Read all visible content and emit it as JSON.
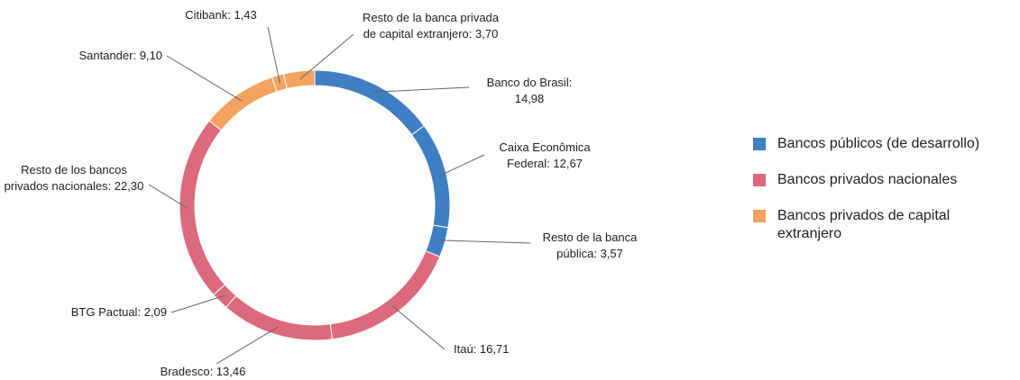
{
  "chart_data": {
    "type": "donut",
    "series": [
      {
        "name": "Bancos públicos (de desarrollo)",
        "color": "#3f7fc4",
        "categories": [
          "Banco do Brasil",
          "Caixa Econômica Federal",
          "Resto de la banca pública"
        ],
        "values": [
          14.98,
          12.67,
          3.57
        ],
        "value_labels": [
          "14,98",
          "12,67",
          "3,57"
        ]
      },
      {
        "name": "Bancos privados nacionales",
        "color": "#dc6a7a",
        "categories": [
          "Itaú",
          "Bradesco",
          "BTG Pactual",
          "Resto de los bancos privados nacionales"
        ],
        "values": [
          16.71,
          13.46,
          2.09,
          22.3
        ],
        "value_labels": [
          "16,71",
          "13,46",
          "2,09",
          "22,30"
        ]
      },
      {
        "name": "Bancos privados de capital extranjero",
        "color": "#f4a25f",
        "categories": [
          "Santander",
          "Citibank",
          "Resto de la banca privada de capital extranjero"
        ],
        "values": [
          9.1,
          1.43,
          3.7
        ],
        "value_labels": [
          "9,10",
          "1,43",
          "3,70"
        ]
      }
    ]
  }
}
